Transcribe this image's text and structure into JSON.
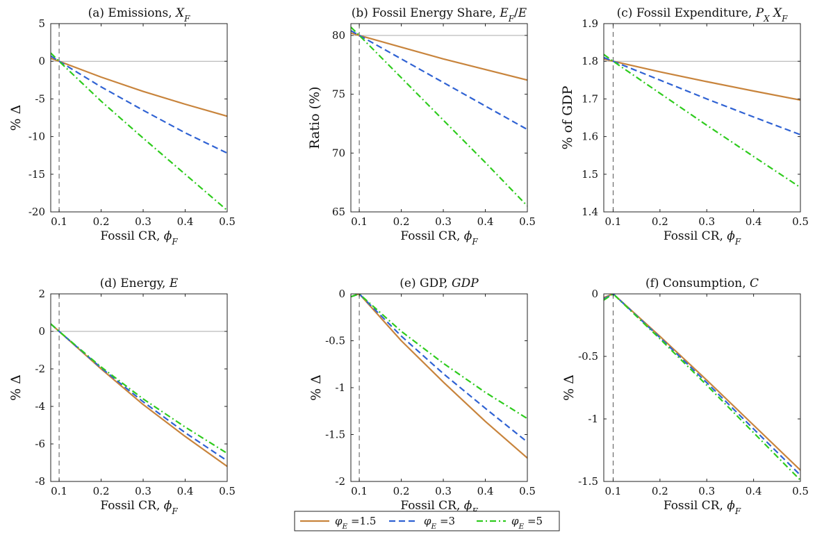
{
  "colors": {
    "phi_1_5": "#c8843c",
    "phi_3": "#2f62d3",
    "phi_5": "#2ecb1d",
    "axis": "#222222",
    "reference": "#aaaaaa"
  },
  "legend": {
    "entries": [
      "φ_E =1.5",
      "φ_E =3",
      "φ_E =5"
    ],
    "styles": [
      "solid",
      "dashed",
      "dashdot"
    ]
  },
  "chart_data": [
    {
      "type": "line",
      "title": "(a) Emissions, X_F",
      "xlabel": "Fossil CR, ϕ_F",
      "ylabel": "% Δ",
      "xlim": [
        0.08,
        0.5
      ],
      "ylim": [
        -20,
        5
      ],
      "xticks": [
        0.1,
        0.2,
        0.3,
        0.4,
        0.5
      ],
      "yticks": [
        -20,
        -15,
        -10,
        -5,
        0,
        5
      ],
      "ytick_labels": [
        "-20",
        "-15",
        "-10",
        "-5",
        "0",
        "5"
      ],
      "hline": 0,
      "vline": 0.1,
      "x": [
        0.08,
        0.1,
        0.2,
        0.3,
        0.4,
        0.5
      ],
      "series": [
        {
          "name": "φ_E =1.5",
          "values": [
            0.4,
            0,
            -2.1,
            -4.0,
            -5.7,
            -7.3
          ]
        },
        {
          "name": "φ_E =3",
          "values": [
            0.7,
            0,
            -3.4,
            -6.5,
            -9.5,
            -12.2
          ]
        },
        {
          "name": "φ_E =5",
          "values": [
            1.1,
            0,
            -5.3,
            -10.2,
            -15.0,
            -19.8
          ]
        }
      ]
    },
    {
      "type": "line",
      "title": "(b) Fossil Energy Share, E_F/E",
      "xlabel": "Fossil CR, ϕ_F",
      "ylabel": "Ratio (%)",
      "xlim": [
        0.08,
        0.5
      ],
      "ylim": [
        65,
        81
      ],
      "xticks": [
        0.1,
        0.2,
        0.3,
        0.4,
        0.5
      ],
      "yticks": [
        65,
        70,
        75,
        80
      ],
      "ytick_labels": [
        "65",
        "70",
        "75",
        "80"
      ],
      "hline": 80,
      "vline": 0.1,
      "x": [
        0.08,
        0.1,
        0.2,
        0.3,
        0.4,
        0.5
      ],
      "series": [
        {
          "name": "φ_E =1.5",
          "values": [
            80.2,
            80.0,
            79.0,
            78.0,
            77.1,
            76.2
          ]
        },
        {
          "name": "φ_E =3",
          "values": [
            80.4,
            80.0,
            78.0,
            76.0,
            74.0,
            72.0
          ]
        },
        {
          "name": "φ_E =5",
          "values": [
            80.7,
            80.0,
            76.4,
            72.8,
            69.2,
            65.5
          ]
        }
      ]
    },
    {
      "type": "line",
      "title": "(c) Fossil Expenditure, P_X X_F",
      "xlabel": "Fossil CR, ϕ_F",
      "ylabel": "% of GDP",
      "xlim": [
        0.08,
        0.5
      ],
      "ylim": [
        1.4,
        1.9
      ],
      "xticks": [
        0.1,
        0.2,
        0.3,
        0.4,
        0.5
      ],
      "yticks": [
        1.4,
        1.5,
        1.6,
        1.7,
        1.8,
        1.9
      ],
      "ytick_labels": [
        "1.4",
        "1.5",
        "1.6",
        "1.7",
        "1.8",
        "1.9"
      ],
      "hline": 1.8,
      "vline": 0.1,
      "x": [
        0.08,
        0.1,
        0.2,
        0.3,
        0.4,
        0.5
      ],
      "series": [
        {
          "name": "φ_E =1.5",
          "values": [
            1.806,
            1.8,
            1.772,
            1.746,
            1.721,
            1.697
          ]
        },
        {
          "name": "φ_E =3",
          "values": [
            1.81,
            1.8,
            1.75,
            1.7,
            1.652,
            1.605
          ]
        },
        {
          "name": "φ_E =5",
          "values": [
            1.818,
            1.8,
            1.715,
            1.63,
            1.547,
            1.465
          ]
        }
      ]
    },
    {
      "type": "line",
      "title": "(d) Energy, E",
      "xlabel": "Fossil CR, ϕ_F",
      "ylabel": "% Δ",
      "xlim": [
        0.08,
        0.5
      ],
      "ylim": [
        -8,
        2
      ],
      "xticks": [
        0.1,
        0.2,
        0.3,
        0.4,
        0.5
      ],
      "yticks": [
        -8,
        -6,
        -4,
        -2,
        0,
        2
      ],
      "ytick_labels": [
        "-8",
        "-6",
        "-4",
        "-2",
        "0",
        "2"
      ],
      "hline": 0,
      "vline": 0.1,
      "x": [
        0.08,
        0.1,
        0.2,
        0.3,
        0.4,
        0.5
      ],
      "series": [
        {
          "name": "φ_E =1.5",
          "values": [
            0.4,
            0,
            -2.0,
            -3.9,
            -5.6,
            -7.2
          ]
        },
        {
          "name": "φ_E =3",
          "values": [
            0.4,
            0,
            -1.95,
            -3.75,
            -5.4,
            -6.9
          ]
        },
        {
          "name": "φ_E =5",
          "values": [
            0.4,
            0,
            -1.9,
            -3.6,
            -5.1,
            -6.5
          ]
        }
      ]
    },
    {
      "type": "line",
      "title": "(e) GDP, GDP",
      "xlabel": "Fossil CR, ϕ_F",
      "ylabel": "% Δ",
      "xlim": [
        0.08,
        0.5
      ],
      "ylim": [
        -2,
        0
      ],
      "xticks": [
        0.1,
        0.2,
        0.3,
        0.4,
        0.5
      ],
      "yticks": [
        -2,
        -1.5,
        -1,
        -0.5,
        0
      ],
      "ytick_labels": [
        "-2",
        "-1.5",
        "-1",
        "-0.5",
        "0"
      ],
      "vline": 0.1,
      "x": [
        0.08,
        0.1,
        0.2,
        0.3,
        0.4,
        0.5
      ],
      "series": [
        {
          "name": "φ_E =1.5",
          "values": [
            -0.03,
            0,
            -0.5,
            -0.94,
            -1.36,
            -1.75
          ]
        },
        {
          "name": "φ_E =3",
          "values": [
            -0.03,
            0,
            -0.45,
            -0.85,
            -1.22,
            -1.58
          ]
        },
        {
          "name": "φ_E =5",
          "values": [
            -0.03,
            0,
            -0.4,
            -0.74,
            -1.05,
            -1.33
          ]
        }
      ]
    },
    {
      "type": "line",
      "title": "(f) Consumption, C",
      "xlabel": "Fossil CR, ϕ_F",
      "ylabel": "% Δ",
      "xlim": [
        0.08,
        0.5
      ],
      "ylim": [
        -1.5,
        0
      ],
      "xticks": [
        0.1,
        0.2,
        0.3,
        0.4,
        0.5
      ],
      "yticks": [
        -1.5,
        -1,
        -0.5,
        0
      ],
      "ytick_labels": [
        "-1.5",
        "-1",
        "-0.5",
        "0"
      ],
      "vline": 0.1,
      "x": [
        0.08,
        0.1,
        0.2,
        0.3,
        0.4,
        0.5
      ],
      "series": [
        {
          "name": "φ_E =1.5",
          "values": [
            -0.03,
            0,
            -0.34,
            -0.69,
            -1.05,
            -1.41
          ]
        },
        {
          "name": "φ_E =3",
          "values": [
            -0.04,
            0,
            -0.35,
            -0.71,
            -1.08,
            -1.45
          ]
        },
        {
          "name": "φ_E =5",
          "values": [
            -0.05,
            0,
            -0.36,
            -0.73,
            -1.11,
            -1.49
          ]
        }
      ]
    }
  ]
}
